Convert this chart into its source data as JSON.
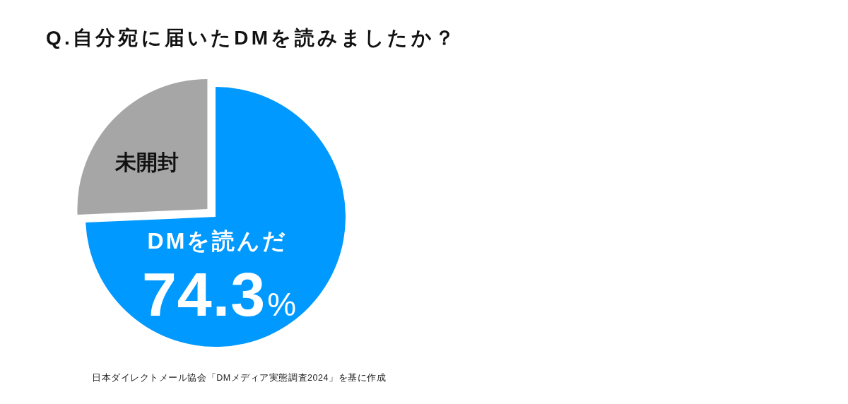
{
  "chart_data": {
    "type": "pie",
    "title": "Q.自分宛に届いたDMを読みましたか？",
    "categories": [
      "DMを読んだ",
      "未開封"
    ],
    "values": [
      74.3,
      25.7
    ],
    "colors": [
      "#0099ff",
      "#a6a6a6"
    ],
    "value_labels": [
      "74.3%",
      null
    ],
    "annotations": [
      "日本ダイレクトメール協会「DMメディア実態調査2024」を基に作成"
    ]
  }
}
